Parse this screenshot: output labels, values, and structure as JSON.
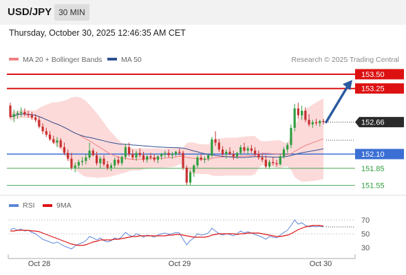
{
  "header": {
    "symbol": "USD/JPY",
    "timeframe": "30 MIN"
  },
  "datetime": "Thursday, October 30, 2025 12:46:35 AM CET",
  "legend": {
    "ma20_label": "MA 20 + Bollinger Bands",
    "ma50_label": "MA 50",
    "ma20_color": "#f08080",
    "ma50_color": "#2f4f8f",
    "credit": "Research © 2025 Trading Central"
  },
  "rsi_legend": {
    "rsi_label": "RSI",
    "ma_label": "9MA",
    "rsi_color": "#5b87d8",
    "ma_color": "#dd1111"
  },
  "colors": {
    "up": "#2f9e3f",
    "down": "#c83030",
    "resistance": "#dd1111",
    "pivot": "#3b6fd4",
    "support": "#2f9e3f",
    "forecast_arrow": "#2b5aa0",
    "band_fill": "#fbd4d4"
  },
  "chart_data": [
    {
      "type": "candlestick",
      "ylim": [
        151.45,
        153.62
      ],
      "x_labels": [
        "Oct 28",
        "Oct 29",
        "Oct 30"
      ],
      "last_price": "152.66",
      "levels": [
        {
          "value": 153.5,
          "label": "153.50",
          "role": "resistance",
          "style": "line-box"
        },
        {
          "value": 153.25,
          "label": "153.25",
          "role": "resistance",
          "style": "line-box"
        },
        {
          "value": 152.1,
          "label": "152.10",
          "role": "pivot",
          "style": "line-box"
        },
        {
          "value": 151.85,
          "label": "151.85",
          "role": "support",
          "style": "thin-text"
        },
        {
          "value": 151.55,
          "label": "151.55",
          "role": "support",
          "style": "thin-text"
        }
      ],
      "forecast": {
        "from": 152.66,
        "to": 153.4,
        "direction": "up"
      },
      "candles": [
        [
          152.95,
          153.0,
          152.72,
          152.75
        ],
        [
          152.75,
          152.88,
          152.66,
          152.8
        ],
        [
          152.8,
          152.86,
          152.72,
          152.82
        ],
        [
          152.82,
          152.92,
          152.75,
          152.84
        ],
        [
          152.84,
          152.9,
          152.76,
          152.8
        ],
        [
          152.8,
          152.86,
          152.74,
          152.78
        ],
        [
          152.78,
          152.84,
          152.7,
          152.74
        ],
        [
          152.74,
          152.8,
          152.66,
          152.7
        ],
        [
          152.7,
          152.76,
          152.55,
          152.58
        ],
        [
          152.58,
          152.64,
          152.45,
          152.5
        ],
        [
          152.5,
          152.56,
          152.4,
          152.44
        ],
        [
          152.44,
          152.5,
          152.33,
          152.36
        ],
        [
          152.36,
          152.42,
          152.28,
          152.3
        ],
        [
          152.3,
          152.4,
          152.22,
          152.34
        ],
        [
          152.34,
          152.38,
          152.2,
          152.22
        ],
        [
          152.22,
          152.3,
          152.08,
          152.12
        ],
        [
          152.12,
          152.18,
          151.98,
          152.02
        ],
        [
          152.02,
          152.12,
          151.82,
          151.86
        ],
        [
          151.86,
          151.95,
          151.78,
          151.9
        ],
        [
          151.9,
          152.0,
          151.85,
          151.96
        ],
        [
          151.96,
          152.05,
          151.9,
          151.98
        ],
        [
          151.98,
          152.1,
          151.92,
          152.04
        ],
        [
          152.04,
          152.3,
          152.0,
          152.16
        ],
        [
          152.16,
          152.2,
          152.06,
          152.08
        ],
        [
          152.08,
          152.14,
          151.9,
          151.94
        ],
        [
          151.94,
          152.06,
          151.85,
          152.02
        ],
        [
          152.02,
          152.08,
          151.88,
          151.92
        ],
        [
          151.92,
          151.98,
          151.82,
          151.86
        ],
        [
          151.86,
          151.94,
          151.8,
          151.9
        ],
        [
          151.9,
          152.04,
          151.86,
          152.0
        ],
        [
          152.0,
          152.06,
          151.9,
          151.94
        ],
        [
          151.94,
          152.08,
          151.9,
          152.05
        ],
        [
          152.05,
          152.28,
          152.0,
          152.22
        ],
        [
          152.22,
          152.3,
          152.06,
          152.1
        ],
        [
          152.1,
          152.18,
          152.0,
          152.04
        ],
        [
          152.04,
          152.16,
          151.98,
          152.12
        ],
        [
          152.12,
          152.2,
          152.04,
          152.08
        ],
        [
          152.08,
          152.14,
          151.96,
          152.0
        ],
        [
          152.0,
          152.08,
          151.95,
          152.06
        ],
        [
          152.06,
          152.12,
          152.0,
          152.04
        ],
        [
          152.04,
          152.1,
          151.96,
          152.0
        ],
        [
          152.0,
          152.08,
          151.94,
          152.06
        ],
        [
          152.06,
          152.12,
          152.0,
          152.1
        ],
        [
          152.1,
          152.16,
          152.04,
          152.12
        ],
        [
          152.12,
          152.18,
          152.04,
          152.08
        ],
        [
          152.08,
          152.14,
          152.02,
          152.1
        ],
        [
          152.1,
          152.16,
          152.06,
          152.14
        ],
        [
          152.14,
          152.2,
          152.08,
          152.12
        ],
        [
          152.12,
          152.16,
          151.82,
          151.86
        ],
        [
          151.86,
          151.9,
          151.56,
          151.6
        ],
        [
          151.6,
          151.82,
          151.56,
          151.78
        ],
        [
          151.78,
          151.92,
          151.7,
          151.9
        ],
        [
          151.9,
          152.08,
          151.86,
          152.04
        ],
        [
          152.04,
          152.1,
          151.98,
          152.0
        ],
        [
          152.0,
          152.06,
          151.94,
          152.02
        ],
        [
          152.02,
          152.1,
          151.98,
          152.08
        ],
        [
          152.08,
          152.4,
          152.04,
          152.36
        ],
        [
          152.36,
          152.5,
          152.24,
          152.3
        ],
        [
          152.3,
          152.36,
          152.14,
          152.18
        ],
        [
          152.18,
          152.24,
          152.06,
          152.1
        ],
        [
          152.1,
          152.18,
          152.02,
          152.14
        ],
        [
          152.14,
          152.22,
          152.08,
          152.1
        ],
        [
          152.1,
          152.16,
          152.0,
          152.06
        ],
        [
          152.06,
          152.14,
          152.02,
          152.12
        ],
        [
          152.12,
          152.26,
          152.08,
          152.22
        ],
        [
          152.22,
          152.3,
          152.12,
          152.16
        ],
        [
          152.16,
          152.24,
          152.1,
          152.2
        ],
        [
          152.2,
          152.26,
          152.12,
          152.16
        ],
        [
          152.16,
          152.22,
          152.06,
          152.1
        ],
        [
          152.1,
          152.16,
          152.0,
          152.04
        ],
        [
          152.04,
          152.1,
          151.96,
          152.0
        ],
        [
          152.0,
          152.08,
          151.85,
          151.88
        ],
        [
          151.88,
          152.0,
          151.84,
          151.96
        ],
        [
          151.96,
          152.04,
          151.9,
          151.94
        ],
        [
          151.94,
          152.0,
          151.88,
          151.92
        ],
        [
          151.92,
          152.1,
          151.9,
          152.06
        ],
        [
          152.06,
          152.22,
          152.02,
          152.18
        ],
        [
          152.18,
          152.3,
          152.12,
          152.26
        ],
        [
          152.26,
          152.62,
          152.2,
          152.56
        ],
        [
          152.56,
          152.98,
          152.5,
          152.9
        ],
        [
          152.9,
          153.0,
          152.72,
          152.78
        ],
        [
          152.78,
          152.95,
          152.7,
          152.86
        ],
        [
          152.86,
          152.92,
          152.66,
          152.7
        ],
        [
          152.7,
          152.8,
          152.58,
          152.62
        ],
        [
          152.62,
          152.7,
          152.56,
          152.66
        ],
        [
          152.66,
          152.72,
          152.6,
          152.64
        ],
        [
          152.64,
          152.7,
          152.58,
          152.68
        ],
        [
          152.68,
          152.72,
          152.62,
          152.66
        ]
      ]
    },
    {
      "type": "line",
      "name": "RSI",
      "ylim": [
        20,
        78
      ],
      "ticks": [
        70,
        50,
        30
      ],
      "rsi": [
        56,
        58,
        55,
        57,
        54,
        55,
        52,
        50,
        46,
        42,
        40,
        38,
        36,
        38,
        35,
        32,
        30,
        28,
        32,
        35,
        37,
        40,
        46,
        44,
        41,
        44,
        40,
        38,
        40,
        44,
        42,
        46,
        52,
        48,
        46,
        50,
        48,
        45,
        48,
        47,
        45,
        48,
        50,
        51,
        49,
        50,
        52,
        51,
        42,
        34,
        40,
        44,
        50,
        48,
        49,
        51,
        58,
        54,
        50,
        48,
        50,
        49,
        47,
        50,
        54,
        51,
        53,
        51,
        49,
        47,
        45,
        42,
        46,
        45,
        44,
        48,
        52,
        55,
        62,
        70,
        64,
        66,
        62,
        60,
        61,
        60,
        61,
        60
      ],
      "ma": [
        54,
        54,
        55,
        55,
        55,
        55,
        54,
        54,
        53,
        51,
        49,
        47,
        45,
        43,
        41,
        39,
        37,
        35,
        34,
        33,
        33,
        34,
        36,
        38,
        39,
        41,
        41,
        41,
        41,
        42,
        42,
        43,
        44,
        45,
        46,
        46,
        47,
        47,
        47,
        47,
        47,
        47,
        47,
        47,
        48,
        48,
        49,
        49,
        48,
        47,
        46,
        45,
        45,
        45,
        45,
        46,
        48,
        49,
        50,
        50,
        50,
        50,
        50,
        49,
        50,
        50,
        51,
        51,
        51,
        51,
        50,
        49,
        48,
        47,
        46,
        46,
        47,
        48,
        50,
        53,
        56,
        58,
        60,
        61,
        62,
        62,
        62,
        61
      ]
    }
  ]
}
